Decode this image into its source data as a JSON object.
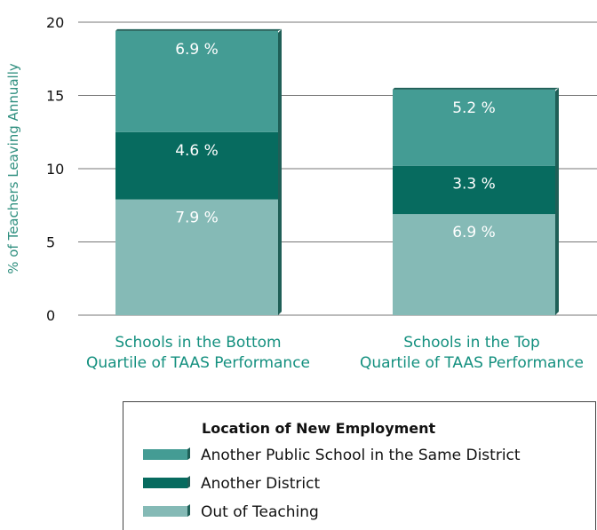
{
  "chart_data": {
    "type": "bar",
    "stacked": true,
    "categories": [
      [
        "Schools in the Bottom",
        "Quartile of TAAS Performance"
      ],
      [
        "Schools in the Top",
        "Quartile of TAAS Performance"
      ]
    ],
    "series": [
      {
        "name": "Out of Teaching",
        "values": [
          7.9,
          6.9
        ],
        "labels": [
          "7.9 %",
          "6.9 %"
        ],
        "color": "#85bab6"
      },
      {
        "name": "Another District",
        "values": [
          4.6,
          3.3
        ],
        "labels": [
          "4.6 %",
          "3.3 %"
        ],
        "color": "#076b5f"
      },
      {
        "name": "Another Public School in the Same District",
        "values": [
          6.9,
          5.2
        ],
        "labels": [
          "6.9 %",
          "5.2 %"
        ],
        "color": "#449c94"
      }
    ],
    "ylabel": "% of Teachers Leaving Annually",
    "xlabel": "",
    "ylim": [
      0,
      20
    ],
    "yticks": [
      "0",
      "5",
      "10",
      "15",
      "20"
    ],
    "grid": true,
    "legend": {
      "title": "Location of New Employment",
      "placement": "bottom-center",
      "items": [
        "Another Public School in the Same District",
        "Another District",
        "Out of Teaching"
      ]
    }
  },
  "colors": {
    "gridline": "#777777",
    "axis_label": "#2f8f7f",
    "category_label": "#14907f",
    "bar_shadow": "#1f5f57"
  }
}
